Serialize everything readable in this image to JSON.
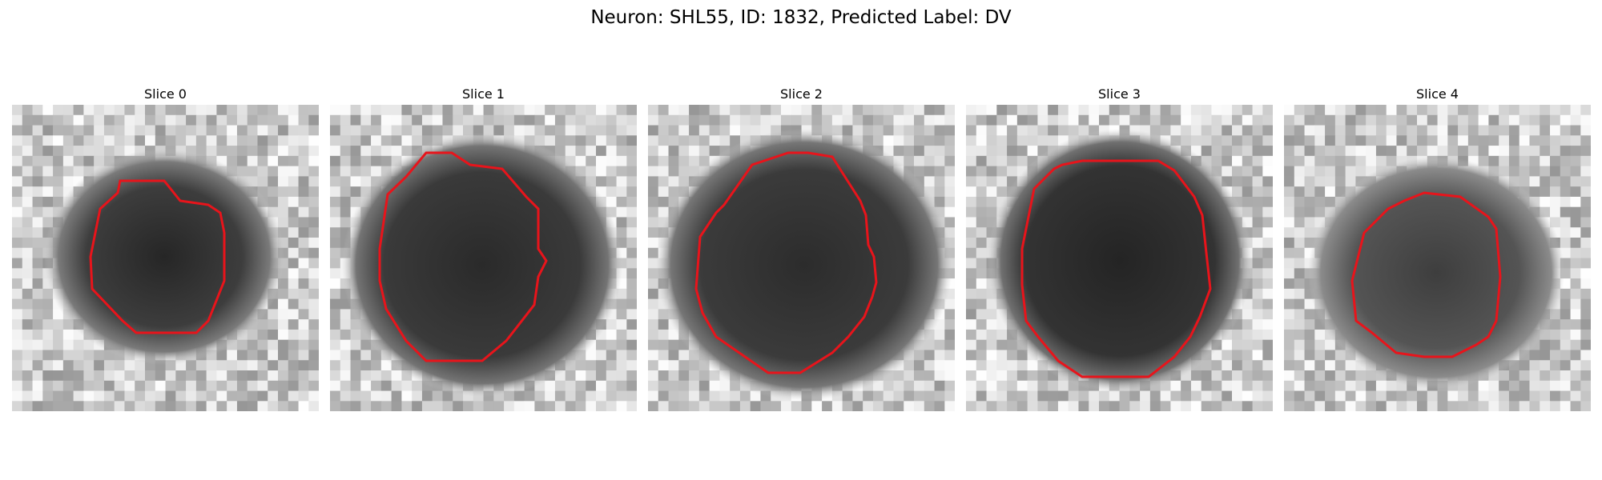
{
  "figure": {
    "title": "Neuron: SHL55, ID: 1832, Predicted Label: DV"
  },
  "contour_color": "#e8141b",
  "slices": [
    {
      "title": "Slice 0",
      "image_description": "grayscale microscopy patch with dark neuron body and red segmentation contour"
    },
    {
      "title": "Slice 1",
      "image_description": "grayscale microscopy patch with dark neuron body and red segmentation contour"
    },
    {
      "title": "Slice 2",
      "image_description": "grayscale microscopy patch with dark neuron body and red segmentation contour"
    },
    {
      "title": "Slice 3",
      "image_description": "grayscale microscopy patch with dark neuron body and red segmentation contour"
    },
    {
      "title": "Slice 4",
      "image_description": "grayscale microscopy patch with dark neuron body and red segmentation contour"
    }
  ]
}
